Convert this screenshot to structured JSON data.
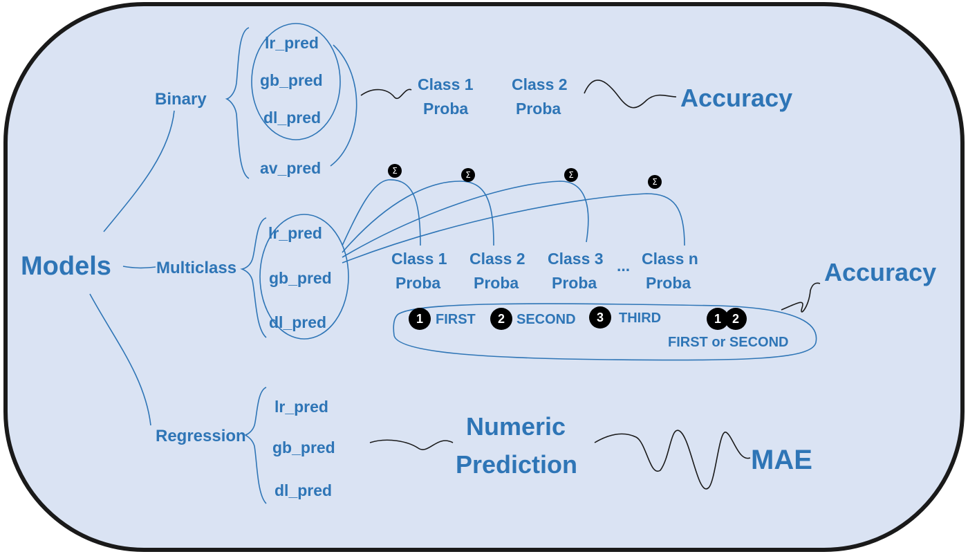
{
  "root": "Models",
  "branches": {
    "binary": {
      "label": "Binary",
      "preds": [
        "lr_pred",
        "gb_pred",
        "dl_pred",
        "av_pred"
      ],
      "outputs": [
        [
          "Class 1",
          "Proba"
        ],
        [
          "Class 2",
          "Proba"
        ]
      ],
      "metric": "Accuracy"
    },
    "multiclass": {
      "label": "Multiclass",
      "preds": [
        "lr_pred",
        "gb_pred",
        "dl_pred"
      ],
      "outputs": [
        [
          "Class 1",
          "Proba"
        ],
        [
          "Class 2",
          "Proba"
        ],
        [
          "Class 3",
          "Proba"
        ],
        [
          "Class n",
          "Proba"
        ]
      ],
      "ellipsis": "...",
      "sum_symbol": "Σ",
      "ranks": [
        {
          "badges": [
            "1"
          ],
          "label": "FIRST"
        },
        {
          "badges": [
            "2"
          ],
          "label": "SECOND"
        },
        {
          "badges": [
            "3"
          ],
          "label": "THIRD"
        },
        {
          "badges": [
            "1",
            "2"
          ],
          "label": "FIRST or SECOND"
        }
      ],
      "metric": "Accuracy"
    },
    "regression": {
      "label": "Regression",
      "preds": [
        "lr_pred",
        "gb_pred",
        "dl_pred"
      ],
      "output": [
        "Numeric",
        "Prediction"
      ],
      "metric": "MAE"
    }
  },
  "colors": {
    "background": "#dae3f3",
    "border": "#1a1a1a",
    "text": "#2e75b6",
    "badge": "#000000"
  }
}
